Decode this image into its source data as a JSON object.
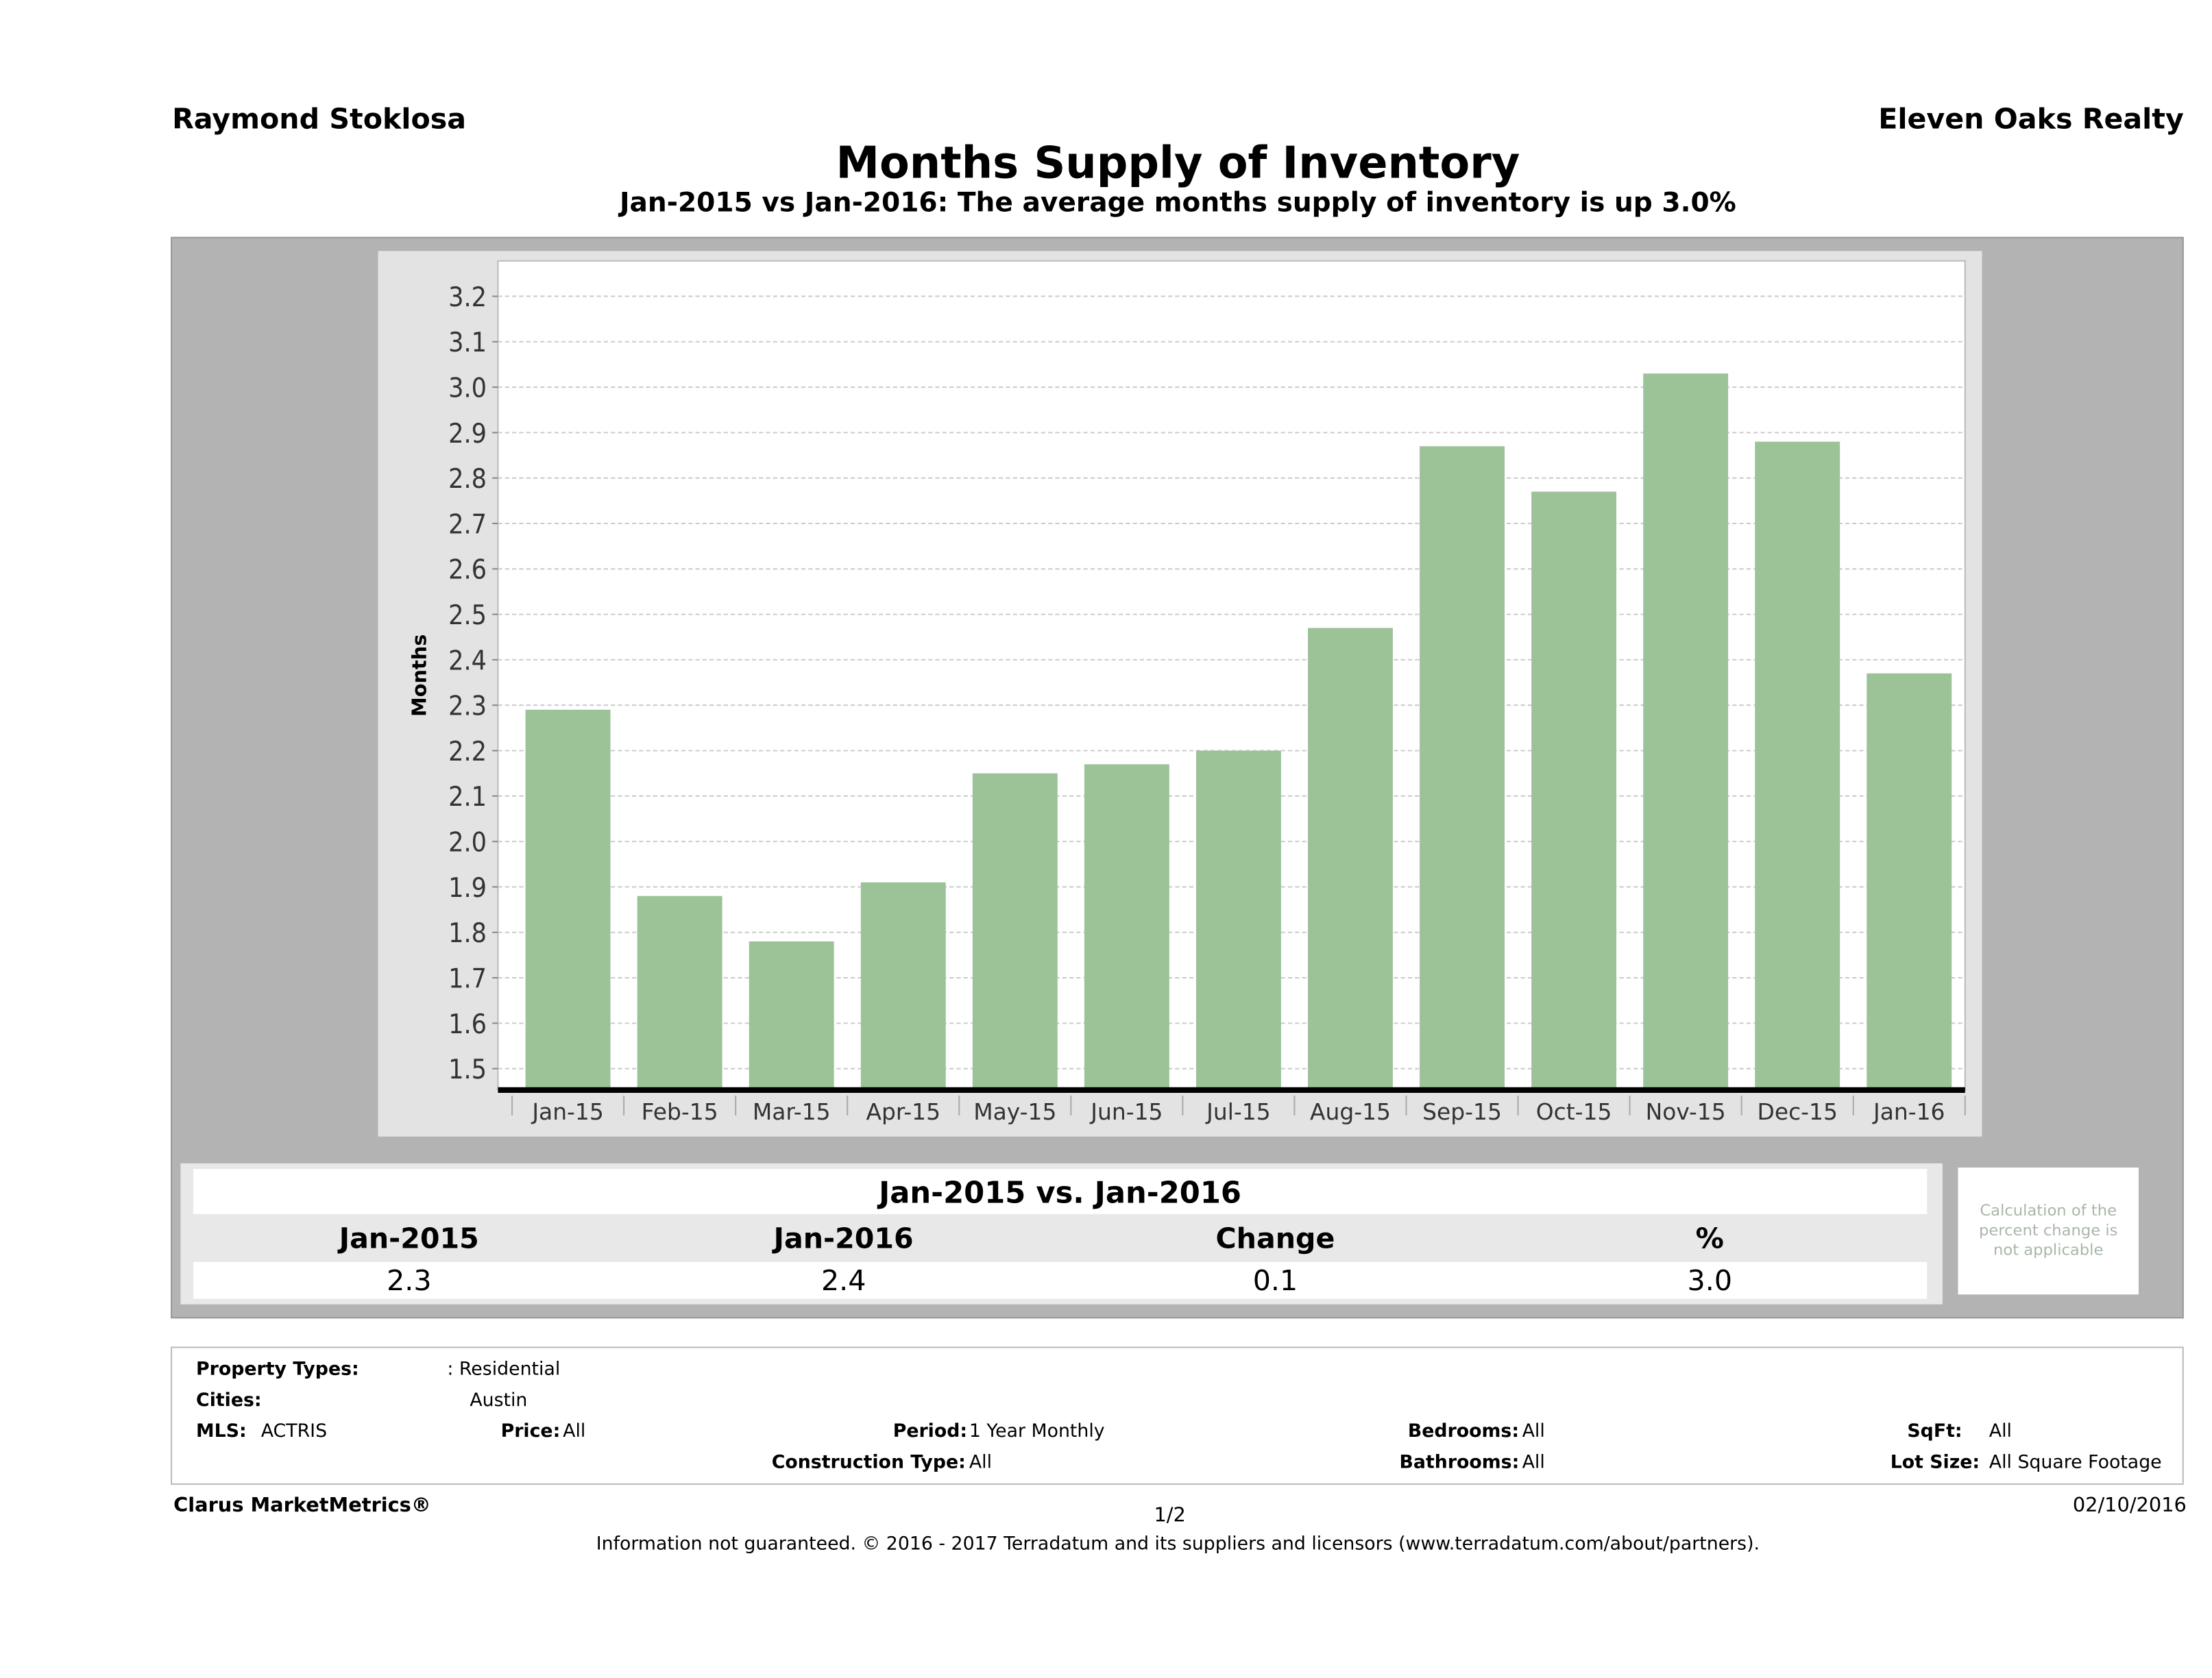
{
  "header": {
    "agent": "Raymond Stoklosa",
    "company": "Eleven Oaks Realty",
    "title": "Months Supply of Inventory",
    "subtitle": "Jan-2015 vs Jan-2016: The average months supply of inventory is up 3.0%"
  },
  "chart_data": {
    "type": "bar",
    "title": "Months Supply of Inventory",
    "xlabel": "",
    "ylabel": "Months",
    "categories": [
      "Jan-15",
      "Feb-15",
      "Mar-15",
      "Apr-15",
      "May-15",
      "Jun-15",
      "Jul-15",
      "Aug-15",
      "Sep-15",
      "Oct-15",
      "Nov-15",
      "Dec-15",
      "Jan-16"
    ],
    "values": [
      2.29,
      1.88,
      1.78,
      1.91,
      2.15,
      2.17,
      2.2,
      2.47,
      2.87,
      2.77,
      3.03,
      2.88,
      2.37
    ],
    "yticks": [
      "1.5",
      "1.6",
      "1.7",
      "1.8",
      "1.9",
      "2.0",
      "2.1",
      "2.2",
      "2.3",
      "2.4",
      "2.5",
      "2.6",
      "2.7",
      "2.8",
      "2.9",
      "3.0",
      "3.1",
      "3.2"
    ],
    "ylim": [
      1.453,
      3.278
    ],
    "grid": true,
    "bar_color": "#9cc298"
  },
  "comparison": {
    "title": "Jan-2015 vs. Jan-2016",
    "headers": [
      "Jan-2015",
      "Jan-2016",
      "Change",
      "%"
    ],
    "values": [
      "2.3",
      "2.4",
      "0.1",
      "3.0"
    ],
    "note": "Calculation of the percent change is not applicable"
  },
  "info": {
    "property_types_label": "Property Types:",
    "property_types": ": Residential",
    "cities_label": "Cities:",
    "cities": "Austin",
    "mls_label": "MLS:",
    "mls": "ACTRIS",
    "price_label": "Price:",
    "price": "All",
    "period_label": "Period:",
    "period": "1 Year Monthly",
    "construction_label": "Construction Type:",
    "construction": "All",
    "bedrooms_label": "Bedrooms:",
    "bedrooms": "All",
    "bathrooms_label": "Bathrooms:",
    "bathrooms": "All",
    "sqft_label": "SqFt:",
    "sqft": "All",
    "lot_label": "Lot Size:",
    "lot": "All Square Footage"
  },
  "footer": {
    "brand": "Clarus MarketMetrics®",
    "page": "1/2",
    "date": "02/10/2016",
    "disclaimer": "Information not guaranteed. © 2016 - 2017 Terradatum and its suppliers and licensors (www.terradatum.com/about/partners)."
  }
}
